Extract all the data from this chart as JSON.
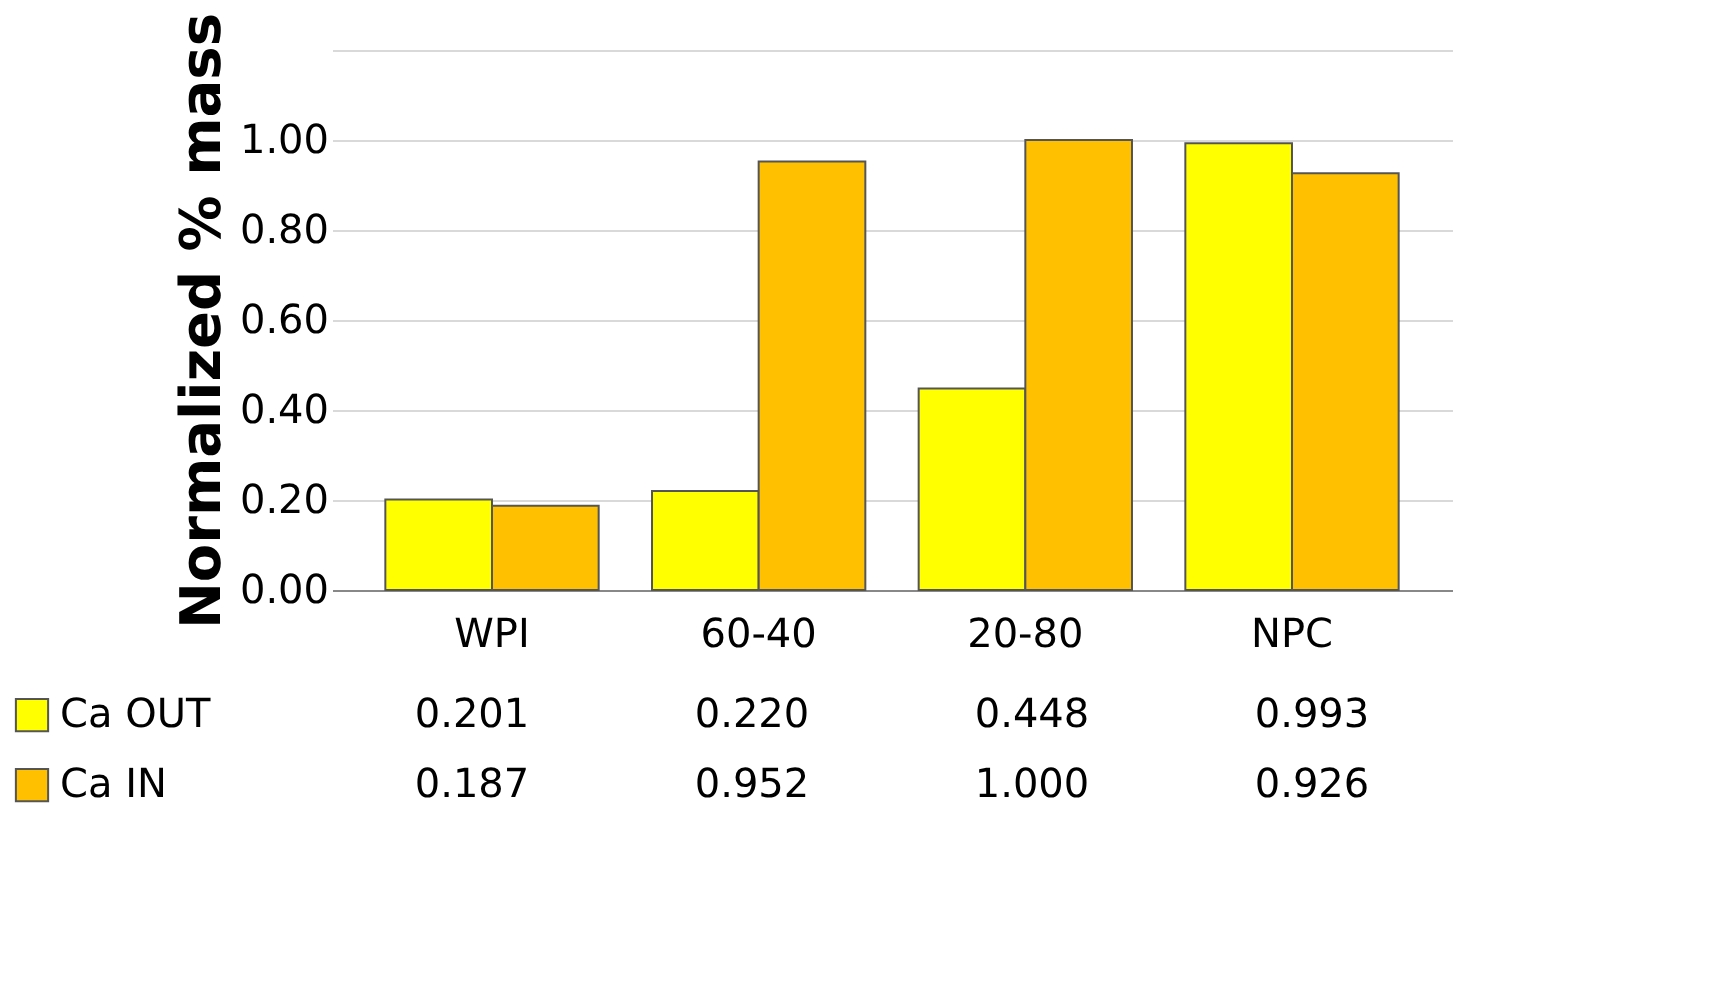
{
  "chart_data": {
    "type": "bar",
    "ylabel": "Normalized % mass",
    "categories": [
      "WPI",
      "60-40",
      "20-80",
      "NPC"
    ],
    "series": [
      {
        "name": "Ca OUT",
        "color": "#ffff00",
        "values": [
          0.201,
          0.22,
          0.448,
          0.993
        ],
        "value_labels": [
          "0.201",
          "0.220",
          "0.448",
          "0.993"
        ]
      },
      {
        "name": "Ca IN",
        "color": "#ffc000",
        "values": [
          0.187,
          0.952,
          1.0,
          0.926
        ],
        "value_labels": [
          "0.187",
          "0.952",
          "1.000",
          "0.926"
        ]
      }
    ],
    "ylim": [
      0,
      1.2
    ],
    "yticks": [
      {
        "value": 0,
        "label": "0.00"
      },
      {
        "value": 0.2,
        "label": "0.20"
      },
      {
        "value": 0.4,
        "label": "0.40"
      },
      {
        "value": 0.6,
        "label": "0.60"
      },
      {
        "value": 0.8,
        "label": "0.80"
      },
      {
        "value": 1.0,
        "label": "1.00"
      },
      {
        "value": 1.2,
        "label": null
      }
    ],
    "grid": "y",
    "legend": "bottom left"
  }
}
